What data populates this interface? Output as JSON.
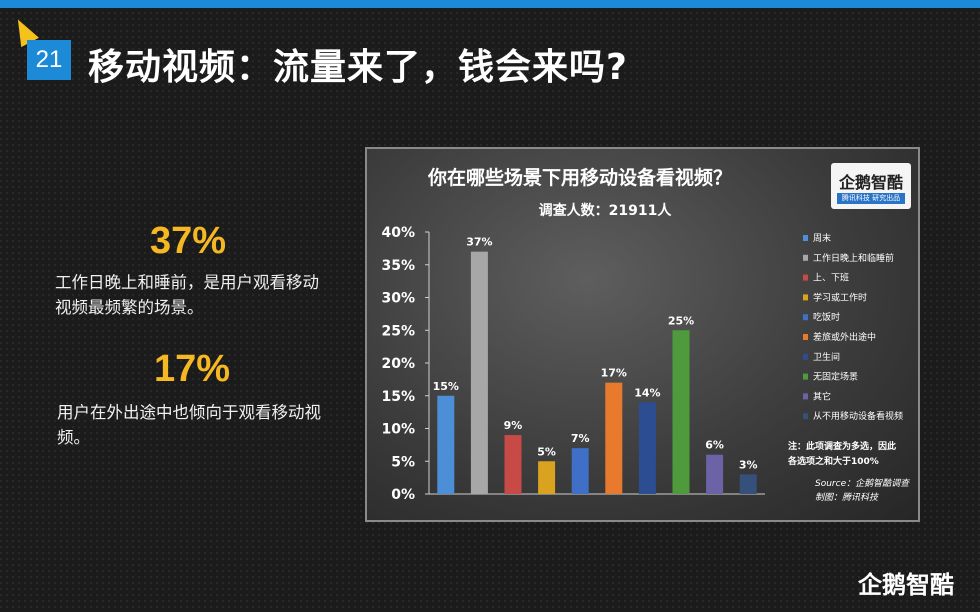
{
  "page": {
    "number": "21",
    "title": "移动视频：流量来了，钱会来吗?"
  },
  "stats": [
    {
      "value": "37%",
      "text": "工作日晚上和睡前，是用户观看移动视频最频繁的场景。"
    },
    {
      "value": "17%",
      "text": "用户在外出途中也倾向于观看移动视频。"
    }
  ],
  "logo": {
    "name": "企鹅智酷",
    "tagline": "腾讯科技 研究出品"
  },
  "brand_logo": "企鹅智酷",
  "colors": {
    "accent_blue": "#1d8ad8",
    "accent_yellow": "#f5b823"
  },
  "chart_data": {
    "type": "bar",
    "title": "你在哪些场景下用移动设备看视频？",
    "subtitle": "调查人数：21911人",
    "ylim": [
      0,
      40
    ],
    "yticks": [
      "0%",
      "5%",
      "10%",
      "15%",
      "20%",
      "25%",
      "30%",
      "35%",
      "40%"
    ],
    "categories": [
      "周末",
      "工作日晚上和临睡前",
      "上、下班",
      "学习或工作时",
      "吃饭时",
      "差旅或外出途中",
      "卫生间",
      "无固定场景",
      "其它",
      "从不用移动设备看视频"
    ],
    "values": [
      15,
      37,
      9,
      5,
      7,
      17,
      14,
      25,
      6,
      3
    ],
    "value_labels": [
      "15%",
      "37%",
      "9%",
      "5%",
      "7%",
      "17%",
      "14%",
      "25%",
      "6%",
      "3%"
    ],
    "colors": [
      "#4d8fd6",
      "#a7a7a7",
      "#c84a47",
      "#d9a21f",
      "#3f6fc6",
      "#e87a2d",
      "#2c4d92",
      "#4f9a3c",
      "#6b63a6",
      "#35507a"
    ],
    "legend_position": "right",
    "note": "注：此项调查为多选，因此各选项之和大于100%",
    "source": "Source：企鹅智酷调查",
    "credit": "制图：腾讯科技"
  }
}
